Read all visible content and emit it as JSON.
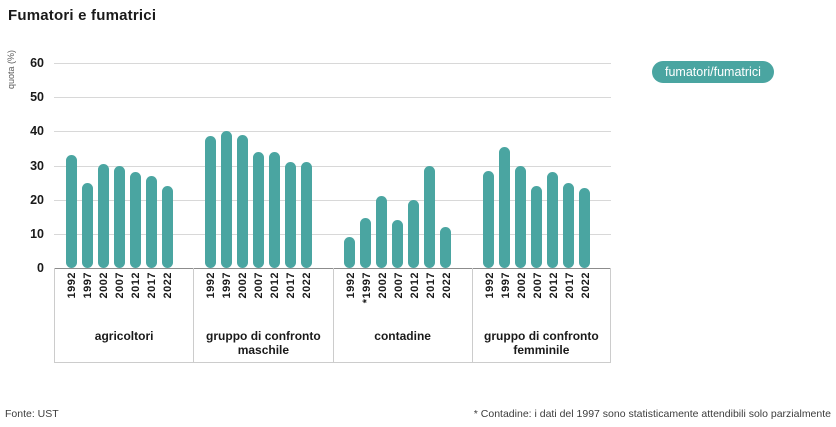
{
  "title": "Fumatori e fumatrici",
  "legend": {
    "label": "fumatori/fumatrici"
  },
  "footer": {
    "source": "Fonte: UST",
    "note": "* Contadine: i dati del 1997 sono statisticamente attendibili solo parzialmente"
  },
  "colors": {
    "bar": "#4AA5A1",
    "gridline": "#d8d8d8",
    "axis_line": "#8c8c8c",
    "box_border": "#cccccc",
    "legend_bg": "#4AA5A1",
    "legend_text": "#ffffff"
  },
  "chart_data": {
    "type": "bar",
    "title": "Fumatori e fumatrici",
    "ylabel": "quota (%)",
    "ylim": [
      0,
      60
    ],
    "yticks": [
      0,
      10,
      20,
      30,
      40,
      50,
      60
    ],
    "grid": true,
    "legend": [
      "fumatori/fumatrici"
    ],
    "legend_position": "top-right",
    "groups": [
      {
        "label": "agricoltori",
        "categories": [
          "1992",
          "1997",
          "2002",
          "2007",
          "2012",
          "2017",
          "2022"
        ],
        "values": [
          33,
          25,
          30.5,
          30,
          28,
          27,
          24
        ]
      },
      {
        "label": "gruppo di confronto maschile",
        "categories": [
          "1992",
          "1997",
          "2002",
          "2007",
          "2012",
          "2017",
          "2022"
        ],
        "values": [
          38.5,
          40,
          39,
          34,
          34,
          31,
          31
        ]
      },
      {
        "label": "contadine",
        "categories": [
          "1992",
          "*1997",
          "2002",
          "2007",
          "2012",
          "2017",
          "2022"
        ],
        "values": [
          9,
          14.5,
          21,
          14,
          20,
          30,
          12
        ]
      },
      {
        "label": "gruppo di confronto femminile",
        "categories": [
          "1992",
          "1997",
          "2002",
          "2007",
          "2012",
          "2017",
          "2022"
        ],
        "values": [
          28.5,
          35.5,
          30,
          24,
          28,
          25,
          23.5
        ]
      }
    ]
  }
}
